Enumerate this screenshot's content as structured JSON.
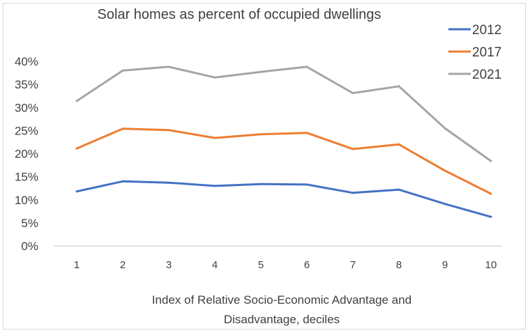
{
  "chart_data": {
    "type": "line",
    "title": "Solar homes as percent of occupied dwellings",
    "xlabel_lines": [
      "Index  of  Relative Socio-Economic Advantage and",
      "Disadvantage, deciles"
    ],
    "ylabel": "",
    "categories": [
      "1",
      "2",
      "3",
      "4",
      "5",
      "6",
      "7",
      "8",
      "9",
      "10"
    ],
    "ylim": [
      0,
      40
    ],
    "yticks": [
      0,
      5,
      10,
      15,
      20,
      25,
      30,
      35,
      40
    ],
    "ytick_labels": [
      "0%",
      "5%",
      "10%",
      "15%",
      "20%",
      "25%",
      "30%",
      "35%",
      "40%"
    ],
    "grid": false,
    "legend_position": "top-right",
    "series": [
      {
        "name": "2012",
        "color": "#4472c4",
        "values": [
          11.8,
          14.0,
          13.7,
          13.0,
          13.4,
          13.3,
          11.5,
          12.2,
          9.1,
          6.3
        ]
      },
      {
        "name": "2017",
        "color": "#ed7d31",
        "values": [
          21.1,
          25.4,
          25.1,
          23.4,
          24.2,
          24.5,
          21.0,
          22.0,
          16.3,
          11.3
        ]
      },
      {
        "name": "2021",
        "color": "#a5a5a5",
        "values": [
          31.4,
          38.0,
          38.8,
          36.5,
          37.7,
          38.8,
          33.1,
          34.6,
          25.5,
          18.4
        ]
      }
    ]
  }
}
